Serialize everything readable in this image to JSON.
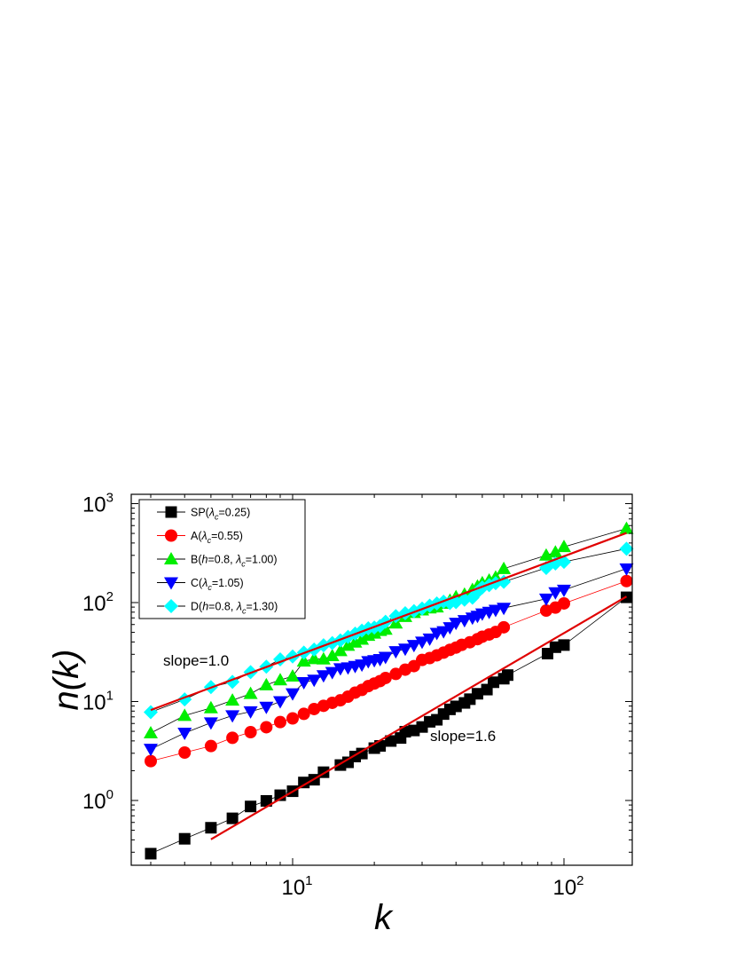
{
  "chart_data": {
    "type": "scatter",
    "title": "",
    "xlabel": "k",
    "ylabel": "n(k)",
    "xscale": "log",
    "yscale": "log",
    "xlim": [
      2.6,
      200
    ],
    "ylim": [
      0.2,
      1200
    ],
    "grid": false,
    "legend_position": "top-left",
    "x_ticks": [
      {
        "value": 10,
        "base": "10",
        "exp": "1"
      },
      {
        "value": 100,
        "base": "10",
        "exp": "2"
      }
    ],
    "y_ticks": [
      {
        "value": 1,
        "base": "10",
        "exp": "0"
      },
      {
        "value": 10,
        "base": "10",
        "exp": "1"
      },
      {
        "value": 100,
        "base": "10",
        "exp": "2"
      },
      {
        "value": 1000,
        "base": "10",
        "exp": "3"
      }
    ],
    "series": [
      {
        "name": "SP(λc=0.25)",
        "legend": {
          "pre": "SP(",
          "h": "",
          "mid": "",
          "lam": "λ",
          "sub": "c",
          "post": "=0.25)"
        },
        "marker": "square",
        "color": "#000000",
        "line_color": "#000000",
        "points": [
          [
            3,
            0.29
          ],
          [
            4,
            0.41
          ],
          [
            5,
            0.53
          ],
          [
            6,
            0.66
          ],
          [
            7,
            0.87
          ],
          [
            8,
            0.99
          ],
          [
            9,
            1.13
          ],
          [
            10,
            1.24
          ],
          [
            11,
            1.52
          ],
          [
            12,
            1.62
          ],
          [
            13,
            1.93
          ],
          [
            15,
            2.28
          ],
          [
            16,
            2.43
          ],
          [
            17,
            2.78
          ],
          [
            18,
            2.98
          ],
          [
            20,
            3.38
          ],
          [
            21,
            3.56
          ],
          [
            23,
            3.99
          ],
          [
            25,
            4.28
          ],
          [
            26,
            4.95
          ],
          [
            28,
            5.1
          ],
          [
            30,
            5.53
          ],
          [
            32,
            6.24
          ],
          [
            34,
            6.54
          ],
          [
            36,
            7.47
          ],
          [
            38,
            8.33
          ],
          [
            40,
            8.93
          ],
          [
            43,
            9.68
          ],
          [
            45,
            10.56
          ],
          [
            48,
            11.98
          ],
          [
            52,
            13.2
          ],
          [
            55,
            15.66
          ],
          [
            60,
            17.01
          ],
          [
            62,
            18.5
          ],
          [
            87,
            30.5
          ],
          [
            93,
            35.4
          ],
          [
            100,
            37.2
          ],
          [
            170,
            113
          ]
        ]
      },
      {
        "name": "A(λc=0.55)",
        "legend": {
          "pre": "A(",
          "h": "",
          "mid": "",
          "lam": "λ",
          "sub": "c",
          "post": "=0.55)"
        },
        "marker": "circle",
        "color": "#ff0000",
        "line_color": "#ff0000",
        "points": [
          [
            3,
            2.5
          ],
          [
            4,
            3.05
          ],
          [
            5,
            3.55
          ],
          [
            6,
            4.3
          ],
          [
            7,
            4.9
          ],
          [
            8,
            5.5
          ],
          [
            9,
            6.2
          ],
          [
            10,
            6.75
          ],
          [
            11,
            7.5
          ],
          [
            12,
            8.4
          ],
          [
            13,
            9.05
          ],
          [
            14,
            9.7
          ],
          [
            15,
            10.3
          ],
          [
            16,
            11.2
          ],
          [
            17,
            12.3
          ],
          [
            18,
            13.1
          ],
          [
            19,
            14.3
          ],
          [
            20,
            15.2
          ],
          [
            21,
            16.1
          ],
          [
            22,
            17.3
          ],
          [
            24,
            19.0
          ],
          [
            26,
            21.0
          ],
          [
            28,
            22.8
          ],
          [
            30,
            26.3
          ],
          [
            32,
            27.5
          ],
          [
            34,
            29.3
          ],
          [
            36,
            31.2
          ],
          [
            38,
            33.3
          ],
          [
            40,
            35.1
          ],
          [
            42,
            37.4
          ],
          [
            45,
            39.7
          ],
          [
            48,
            42.7
          ],
          [
            50,
            45.2
          ],
          [
            53,
            47.6
          ],
          [
            56,
            50.4
          ],
          [
            60,
            56.3
          ],
          [
            86,
            83
          ],
          [
            93,
            89
          ],
          [
            100,
            98
          ],
          [
            170,
            165
          ]
        ]
      },
      {
        "name": "B(h=0.8, λc=1.00)",
        "legend": {
          "pre": "B(",
          "h": "h",
          "mid": "=0.8, ",
          "lam": "λ",
          "sub": "c",
          "post": "=1.00)"
        },
        "marker": "triangle-up",
        "color": "#00ee00",
        "line_color": "#000000",
        "points": [
          [
            3,
            4.8
          ],
          [
            4,
            7.2
          ],
          [
            5,
            8.6
          ],
          [
            6,
            10.3
          ],
          [
            7,
            12.0
          ],
          [
            8,
            14.7
          ],
          [
            9,
            16.5
          ],
          [
            10,
            18.0
          ],
          [
            11,
            25.5
          ],
          [
            12,
            27.0
          ],
          [
            13,
            26.8
          ],
          [
            14,
            29.0
          ],
          [
            15,
            32.5
          ],
          [
            16,
            36.8
          ],
          [
            17,
            39.7
          ],
          [
            18,
            42.4
          ],
          [
            19,
            46.5
          ],
          [
            20,
            48.9
          ],
          [
            21,
            52.0
          ],
          [
            22,
            53.5
          ],
          [
            24,
            61.8
          ],
          [
            26,
            72.0
          ],
          [
            28,
            79.0
          ],
          [
            30,
            84.0
          ],
          [
            32,
            88.0
          ],
          [
            34,
            90.0
          ],
          [
            36,
            98.0
          ],
          [
            38,
            105.0
          ],
          [
            40,
            114.0
          ],
          [
            43,
            121.0
          ],
          [
            46,
            135.0
          ],
          [
            48,
            146.0
          ],
          [
            50,
            158.0
          ],
          [
            53,
            168.0
          ],
          [
            56,
            180.0
          ],
          [
            60,
            220.0
          ],
          [
            86,
            300.0
          ],
          [
            93,
            323.0
          ],
          [
            100,
            366.0
          ],
          [
            170,
            560.0
          ]
        ]
      },
      {
        "name": "C(λc=1.05)",
        "legend": {
          "pre": "C(",
          "h": "",
          "mid": "",
          "lam": "λ",
          "sub": "c",
          "post": "=1.05)"
        },
        "marker": "triangle-down",
        "color": "#0000ff",
        "line_color": "#000000",
        "points": [
          [
            3,
            3.3
          ],
          [
            4,
            4.8
          ],
          [
            5,
            6.1
          ],
          [
            6,
            7.2
          ],
          [
            7,
            7.9
          ],
          [
            8,
            8.8
          ],
          [
            9,
            10.0
          ],
          [
            10,
            12.0
          ],
          [
            11,
            15.6
          ],
          [
            12,
            16.5
          ],
          [
            13,
            18.3
          ],
          [
            14,
            19.7
          ],
          [
            15,
            21.5
          ],
          [
            16,
            22.0
          ],
          [
            17,
            22.7
          ],
          [
            18,
            23.5
          ],
          [
            19,
            25.4
          ],
          [
            20,
            26.0
          ],
          [
            21,
            26.7
          ],
          [
            22,
            28.1
          ],
          [
            24,
            32.0
          ],
          [
            26,
            34.0
          ],
          [
            28,
            37.0
          ],
          [
            30,
            40.0
          ],
          [
            32,
            43.0
          ],
          [
            34,
            49.0
          ],
          [
            36,
            51.0
          ],
          [
            38,
            56.0
          ],
          [
            40,
            62.0
          ],
          [
            43,
            66.0
          ],
          [
            46,
            70.0
          ],
          [
            48,
            73.0
          ],
          [
            50,
            77.0
          ],
          [
            53,
            80.0
          ],
          [
            56,
            84.0
          ],
          [
            60,
            88.0
          ],
          [
            86,
            109.0
          ],
          [
            93,
            126.0
          ],
          [
            100,
            134.0
          ],
          [
            170,
            220.0
          ]
        ]
      },
      {
        "name": "D(h=0.8, λc=1.30)",
        "legend": {
          "pre": "D(",
          "h": "h",
          "mid": "=0.8, ",
          "lam": "λ",
          "sub": "c",
          "post": "=1.30)"
        },
        "marker": "diamond",
        "color": "#00ffff",
        "line_color": "#000000",
        "points": [
          [
            3,
            7.8
          ],
          [
            4,
            10.5
          ],
          [
            5,
            14.0
          ],
          [
            6,
            15.8
          ],
          [
            7,
            19.8
          ],
          [
            8,
            22.5
          ],
          [
            9,
            26.7
          ],
          [
            10,
            28.5
          ],
          [
            11,
            31.2
          ],
          [
            12,
            33.5
          ],
          [
            13,
            37.0
          ],
          [
            14,
            39.0
          ],
          [
            15,
            41.5
          ],
          [
            16,
            45.0
          ],
          [
            17,
            48.5
          ],
          [
            18,
            52.0
          ],
          [
            19,
            55.0
          ],
          [
            20,
            56.0
          ],
          [
            21,
            58.0
          ],
          [
            22,
            64.0
          ],
          [
            24,
            73.0
          ],
          [
            26,
            78.0
          ],
          [
            28,
            82.0
          ],
          [
            30,
            87.0
          ],
          [
            32,
            93.0
          ],
          [
            34,
            98.0
          ],
          [
            36,
            102.0
          ],
          [
            38,
            99.0
          ],
          [
            40,
            101.0
          ],
          [
            43,
            107.0
          ],
          [
            46,
            112.0
          ],
          [
            48,
            128.0
          ],
          [
            50,
            142.0
          ],
          [
            53,
            150.0
          ],
          [
            56,
            157.0
          ],
          [
            60,
            162.0
          ],
          [
            86,
            224.0
          ],
          [
            93,
            248.0
          ],
          [
            100,
            258.0
          ],
          [
            170,
            350.0
          ]
        ]
      }
    ],
    "fit_lines": [
      {
        "label": "slope=1.0",
        "slope": 1.0,
        "from": [
          3,
          8.2
        ],
        "to": [
          170,
          505
        ],
        "color": "#e00000"
      },
      {
        "label": "slope=1.6",
        "slope": 1.6,
        "from": [
          5,
          0.405
        ],
        "to": [
          170,
          115
        ],
        "color": "#e00000"
      }
    ]
  }
}
